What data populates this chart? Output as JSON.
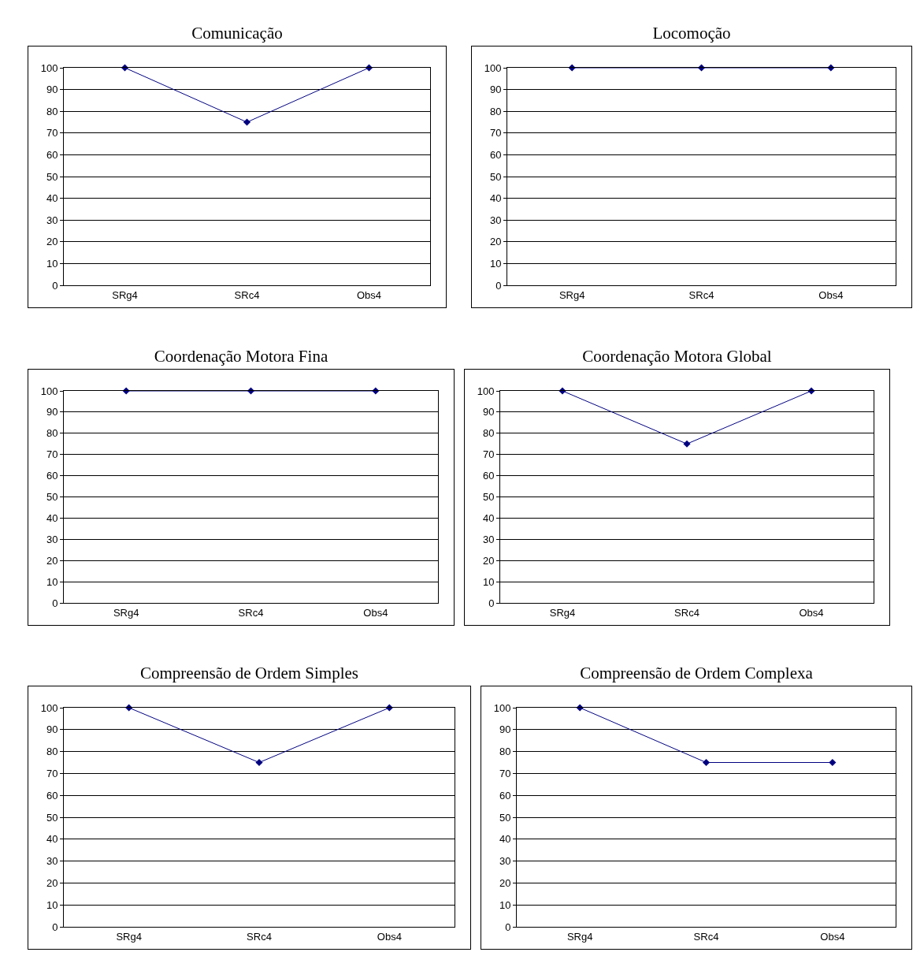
{
  "chart_data": [
    {
      "type": "line",
      "title": "Comunicação",
      "categories": [
        "SRg4",
        "SRc4",
        "Obs4"
      ],
      "values": [
        100,
        75,
        100
      ],
      "color": "#000080",
      "ylim": [
        0,
        100
      ],
      "yticks": [
        0,
        10,
        20,
        30,
        40,
        50,
        60,
        70,
        80,
        90,
        100
      ],
      "grid": "y",
      "marker": "diamond"
    },
    {
      "type": "line",
      "title": "Locomoção",
      "categories": [
        "SRg4",
        "SRc4",
        "Obs4"
      ],
      "values": [
        100,
        100,
        100
      ],
      "color": "#000080",
      "ylim": [
        0,
        100
      ],
      "yticks": [
        0,
        10,
        20,
        30,
        40,
        50,
        60,
        70,
        80,
        90,
        100
      ],
      "grid": "y",
      "marker": "diamond"
    },
    {
      "type": "line",
      "title": "Coordenação Motora Fina",
      "categories": [
        "SRg4",
        "SRc4",
        "Obs4"
      ],
      "values": [
        100,
        100,
        100
      ],
      "color": "#000080",
      "ylim": [
        0,
        100
      ],
      "yticks": [
        0,
        10,
        20,
        30,
        40,
        50,
        60,
        70,
        80,
        90,
        100
      ],
      "grid": "y",
      "marker": "diamond"
    },
    {
      "type": "line",
      "title": "Coordenação Motora Global",
      "categories": [
        "SRg4",
        "SRc4",
        "Obs4"
      ],
      "values": [
        100,
        75,
        100
      ],
      "color": "#000080",
      "ylim": [
        0,
        100
      ],
      "yticks": [
        0,
        10,
        20,
        30,
        40,
        50,
        60,
        70,
        80,
        90,
        100
      ],
      "grid": "y",
      "marker": "diamond"
    },
    {
      "type": "line",
      "title": "Compreensão de Ordem Simples",
      "categories": [
        "SRg4",
        "SRc4",
        "Obs4"
      ],
      "values": [
        100,
        75,
        100
      ],
      "color": "#000080",
      "ylim": [
        0,
        100
      ],
      "yticks": [
        0,
        10,
        20,
        30,
        40,
        50,
        60,
        70,
        80,
        90,
        100
      ],
      "grid": "y",
      "marker": "diamond"
    },
    {
      "type": "line",
      "title": "Compreensão de Ordem Complexa",
      "categories": [
        "SRg4",
        "SRc4",
        "Obs4"
      ],
      "values": [
        100,
        75,
        75
      ],
      "color": "#000080",
      "ylim": [
        0,
        100
      ],
      "yticks": [
        0,
        10,
        20,
        30,
        40,
        50,
        60,
        70,
        80,
        90,
        100
      ],
      "grid": "y",
      "marker": "diamond"
    }
  ]
}
